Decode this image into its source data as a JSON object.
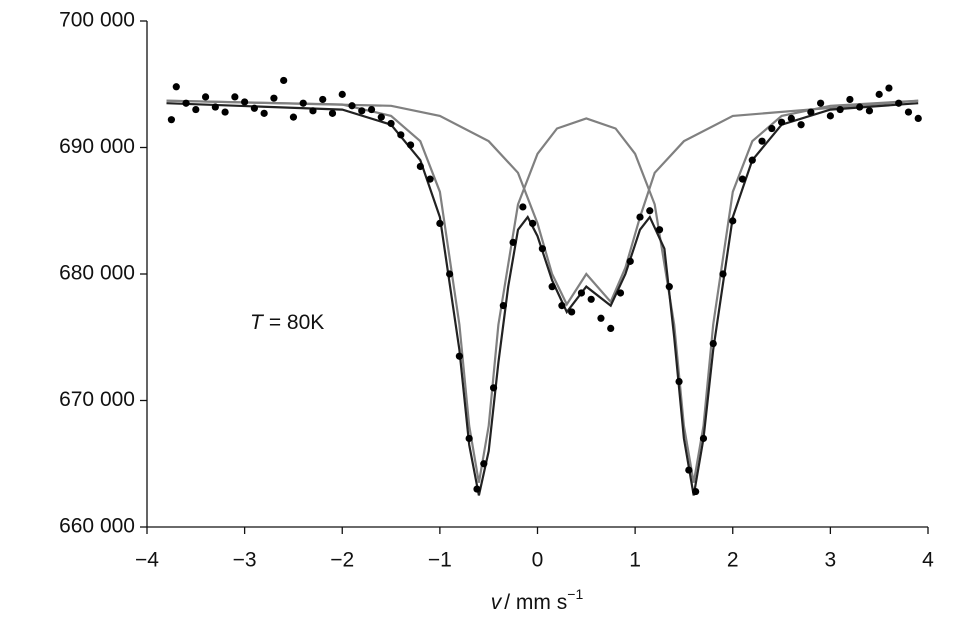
{
  "chart_data": {
    "type": "scatter",
    "xlabel": {
      "symbol": "v",
      "unit": "/ mm s",
      "exponent": "−1"
    },
    "annotation": {
      "symbol": "T",
      "text": "= 80K"
    },
    "xlim": [
      -4,
      4
    ],
    "xticks": [
      {
        "value": -4,
        "label": "−4"
      },
      {
        "value": -3,
        "label": "−3"
      },
      {
        "value": -2,
        "label": "−2"
      },
      {
        "value": -1,
        "label": "−1"
      },
      0,
      1,
      2,
      3,
      4
    ],
    "ylim": [
      660000,
      700000
    ],
    "yticks": [
      {
        "value": 660000,
        "label": "660 000"
      },
      {
        "value": 670000,
        "label": "670 000"
      },
      {
        "value": 680000,
        "label": "680 000"
      },
      {
        "value": 690000,
        "label": "690 000"
      },
      {
        "value": 700000,
        "label": "700 000"
      }
    ],
    "series": [
      {
        "mode": "lines",
        "color": "#808080",
        "x": [
          -3.8,
          -2,
          -1.5,
          -1.2,
          -1,
          -0.8,
          -0.7,
          -0.6,
          -0.5,
          -0.4,
          -0.2,
          0,
          0.2,
          0.5,
          0.8,
          1,
          1.2,
          1.4,
          1.5,
          1.6,
          1.7,
          1.8,
          2,
          2.2,
          2.5,
          3,
          3.9
        ],
        "values": [
          693700,
          693400,
          692500,
          690500,
          686500,
          676000,
          668000,
          663500,
          668000,
          676000,
          685500,
          689500,
          691500,
          692300,
          691500,
          689500,
          685500,
          676000,
          668000,
          663500,
          668000,
          676000,
          686500,
          690500,
          692500,
          693300,
          693700
        ]
      },
      {
        "mode": "lines",
        "color": "#808080",
        "x": [
          -3.8,
          -1.5,
          -1,
          -0.5,
          -0.2,
          0,
          0.15,
          0.3,
          0.5,
          0.75,
          0.9,
          1.05,
          1.2,
          1.5,
          2,
          3.9
        ],
        "values": [
          693700,
          693300,
          692500,
          690500,
          688000,
          684000,
          680000,
          677600,
          680000,
          677800,
          680500,
          684500,
          688000,
          690500,
          692500,
          693700
        ]
      },
      {
        "mode": "lines",
        "color": "#222222",
        "x": [
          -3.8,
          -2,
          -1.5,
          -1.2,
          -1,
          -0.8,
          -0.7,
          -0.6,
          -0.5,
          -0.4,
          -0.3,
          -0.2,
          -0.1,
          0,
          0.15,
          0.3,
          0.5,
          0.75,
          0.9,
          1.05,
          1.15,
          1.3,
          1.4,
          1.5,
          1.6,
          1.7,
          1.8,
          2,
          2.2,
          2.5,
          3,
          3.9
        ],
        "values": [
          693500,
          693000,
          691800,
          689000,
          684500,
          674000,
          666500,
          662500,
          666000,
          673000,
          679000,
          683500,
          684500,
          683000,
          679500,
          677000,
          679000,
          677500,
          680000,
          683500,
          684500,
          682000,
          675000,
          667000,
          662500,
          667000,
          674000,
          684500,
          689000,
          691800,
          693000,
          693500
        ]
      },
      {
        "mode": "markers",
        "color": "#000000",
        "x": [
          -3.75,
          -3.7,
          -3.6,
          -3.5,
          -3.4,
          -3.3,
          -3.2,
          -3.1,
          -3.0,
          -2.9,
          -2.8,
          -2.7,
          -2.6,
          -2.5,
          -2.4,
          -2.3,
          -2.2,
          -2.1,
          -2.0,
          -1.9,
          -1.8,
          -1.7,
          -1.6,
          -1.5,
          -1.4,
          -1.3,
          -1.2,
          -1.1,
          -1.0,
          -0.9,
          -0.8,
          -0.7,
          -0.62,
          -0.55,
          -0.45,
          -0.35,
          -0.25,
          -0.15,
          -0.05,
          0.05,
          0.15,
          0.25,
          0.35,
          0.45,
          0.55,
          0.65,
          0.75,
          0.85,
          0.95,
          1.05,
          1.15,
          1.25,
          1.35,
          1.45,
          1.55,
          1.62,
          1.7,
          1.8,
          1.9,
          2.0,
          2.1,
          2.2,
          2.3,
          2.4,
          2.5,
          2.6,
          2.7,
          2.8,
          2.9,
          3.0,
          3.1,
          3.2,
          3.3,
          3.4,
          3.5,
          3.6,
          3.7,
          3.8,
          3.9
        ],
        "values": [
          692200,
          694800,
          693500,
          693000,
          694000,
          693200,
          692800,
          694000,
          693600,
          693100,
          692700,
          693900,
          695300,
          692400,
          693500,
          692900,
          693800,
          692700,
          694200,
          693300,
          692900,
          693000,
          692400,
          691900,
          691000,
          690200,
          688500,
          687500,
          684000,
          680000,
          673500,
          667000,
          663000,
          665000,
          671000,
          677500,
          682500,
          685300,
          684000,
          682000,
          679000,
          677500,
          677000,
          678500,
          678000,
          676500,
          675700,
          678500,
          681000,
          684500,
          685000,
          683500,
          679000,
          671500,
          664500,
          662800,
          667000,
          674500,
          680000,
          684200,
          687500,
          689000,
          690500,
          691500,
          692000,
          692300,
          691800,
          692800,
          693500,
          692500,
          693000,
          693800,
          693200,
          692900,
          694200,
          694700,
          693500,
          692800,
          692300
        ]
      }
    ]
  }
}
